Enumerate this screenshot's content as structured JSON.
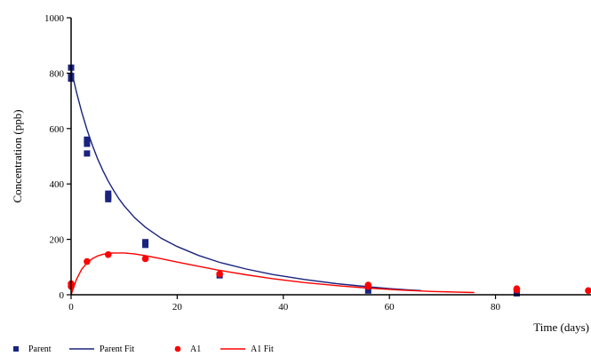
{
  "chart_data": {
    "type": "scatter",
    "xlabel": "Time (days)",
    "ylabel": "Concentration (ppb)",
    "xlim": [
      0,
      98
    ],
    "ylim": [
      0,
      1000
    ],
    "x_ticks": [
      0,
      20,
      40,
      60,
      80
    ],
    "y_ticks": [
      0,
      200,
      400,
      600,
      800,
      1000
    ],
    "grid": false,
    "legend_position": "bottom-left",
    "colors": {
      "parent": "#1a237e",
      "a1": "#ff0000",
      "axis": "#000000"
    },
    "series": [
      {
        "name": "Parent",
        "kind": "points",
        "marker": "square",
        "color": "#1a237e",
        "points": [
          [
            0,
            820
          ],
          [
            0,
            790
          ],
          [
            0,
            780
          ],
          [
            3,
            560
          ],
          [
            3,
            545
          ],
          [
            3,
            510
          ],
          [
            7,
            365
          ],
          [
            7,
            355
          ],
          [
            7,
            345
          ],
          [
            14,
            190
          ],
          [
            14,
            180
          ],
          [
            28,
            70
          ],
          [
            56,
            15
          ],
          [
            84,
            5
          ]
        ]
      },
      {
        "name": "Parent Fit",
        "kind": "line",
        "color": "#1a237e",
        "points": [
          [
            0,
            815
          ],
          [
            1,
            732
          ],
          [
            2,
            660
          ],
          [
            3,
            596
          ],
          [
            4,
            540
          ],
          [
            5,
            491
          ],
          [
            6,
            448
          ],
          [
            7,
            410
          ],
          [
            8,
            377
          ],
          [
            9,
            347
          ],
          [
            10,
            321
          ],
          [
            12,
            278
          ],
          [
            14,
            244
          ],
          [
            17,
            204
          ],
          [
            20,
            174
          ],
          [
            24,
            142
          ],
          [
            28,
            117
          ],
          [
            33,
            93
          ],
          [
            38,
            73
          ],
          [
            44,
            55
          ],
          [
            50,
            40
          ],
          [
            56,
            29
          ],
          [
            60,
            22
          ],
          [
            64,
            17
          ],
          [
            66,
            15
          ]
        ]
      },
      {
        "name": "A1",
        "kind": "points",
        "marker": "circle",
        "color": "#ff0000",
        "points": [
          [
            0,
            40
          ],
          [
            0,
            30
          ],
          [
            3,
            120
          ],
          [
            7,
            145
          ],
          [
            14,
            130
          ],
          [
            28,
            75
          ],
          [
            56,
            35
          ],
          [
            56,
            30
          ],
          [
            84,
            22
          ],
          [
            84,
            18
          ],
          [
            98,
            15
          ]
        ]
      },
      {
        "name": "A1 Fit",
        "kind": "line",
        "color": "#ff0000",
        "points": [
          [
            0,
            0
          ],
          [
            1,
            55
          ],
          [
            2,
            92
          ],
          [
            3,
            115
          ],
          [
            4,
            130
          ],
          [
            5,
            140
          ],
          [
            6,
            146
          ],
          [
            7,
            149
          ],
          [
            8,
            151
          ],
          [
            10,
            151
          ],
          [
            12,
            147
          ],
          [
            14,
            141
          ],
          [
            17,
            130
          ],
          [
            20,
            118
          ],
          [
            24,
            103
          ],
          [
            28,
            88
          ],
          [
            33,
            72
          ],
          [
            38,
            58
          ],
          [
            44,
            44
          ],
          [
            50,
            33
          ],
          [
            56,
            24
          ],
          [
            62,
            17
          ],
          [
            68,
            12
          ],
          [
            72,
            10
          ],
          [
            76,
            8
          ]
        ]
      }
    ]
  },
  "legend": {
    "items": [
      {
        "label": "Parent",
        "type": "square",
        "color": "#1a237e"
      },
      {
        "label": "Parent Fit",
        "type": "line",
        "color": "#1a237e"
      },
      {
        "label": "A1",
        "type": "circle",
        "color": "#ff0000"
      },
      {
        "label": "A1 Fit",
        "type": "line",
        "color": "#ff0000"
      }
    ]
  }
}
